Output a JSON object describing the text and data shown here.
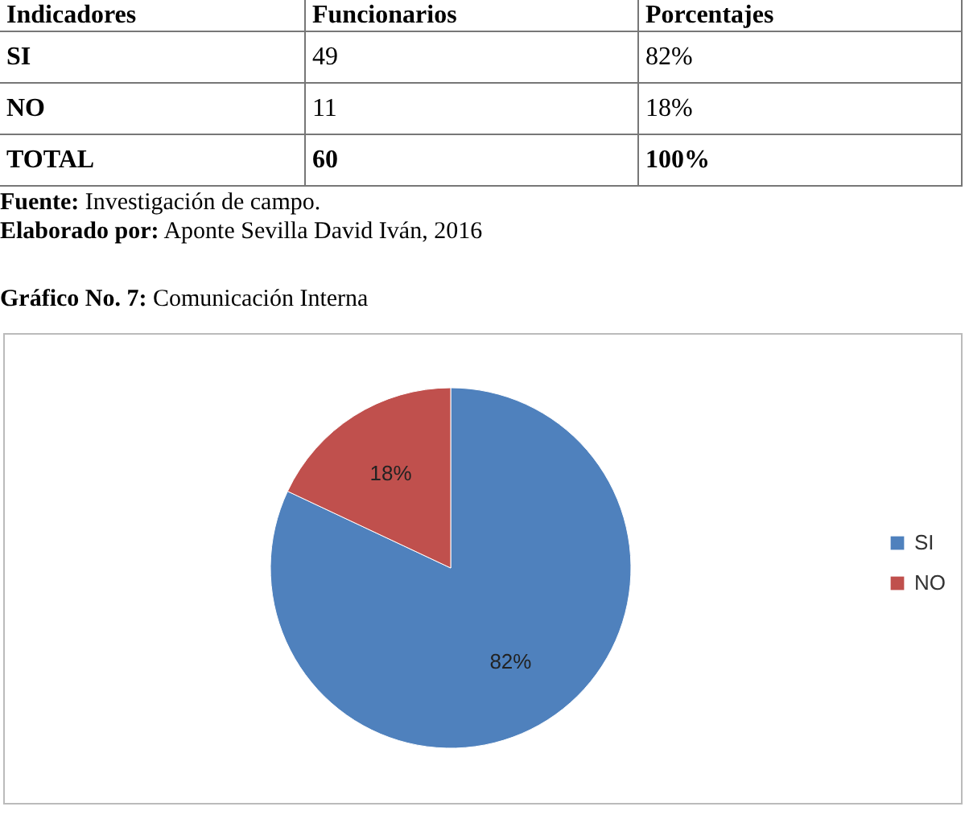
{
  "chart_data": [
    {
      "type": "other",
      "annotations": [
        "Indicadores",
        "Funcionarios",
        "Porcentajes",
        "SI",
        "49",
        "82%",
        "NO",
        "11",
        "18%",
        "TOTAL",
        "60",
        "100%"
      ]
    },
    {
      "type": "pie",
      "title": "Gráfico No. 7: Comunicación Interna",
      "annotations": [
        "Fuente: Investigación de campo.",
        "Elaborado por: Aponte Sevilla David Iván, 2016"
      ],
      "categories": [
        "SI",
        "NO"
      ],
      "values": [
        82,
        18
      ],
      "colors": [
        "#4f81bd",
        "#c0504d"
      ],
      "value_labels": [
        "82%",
        "18%"
      ],
      "legend": "right"
    }
  ]
}
